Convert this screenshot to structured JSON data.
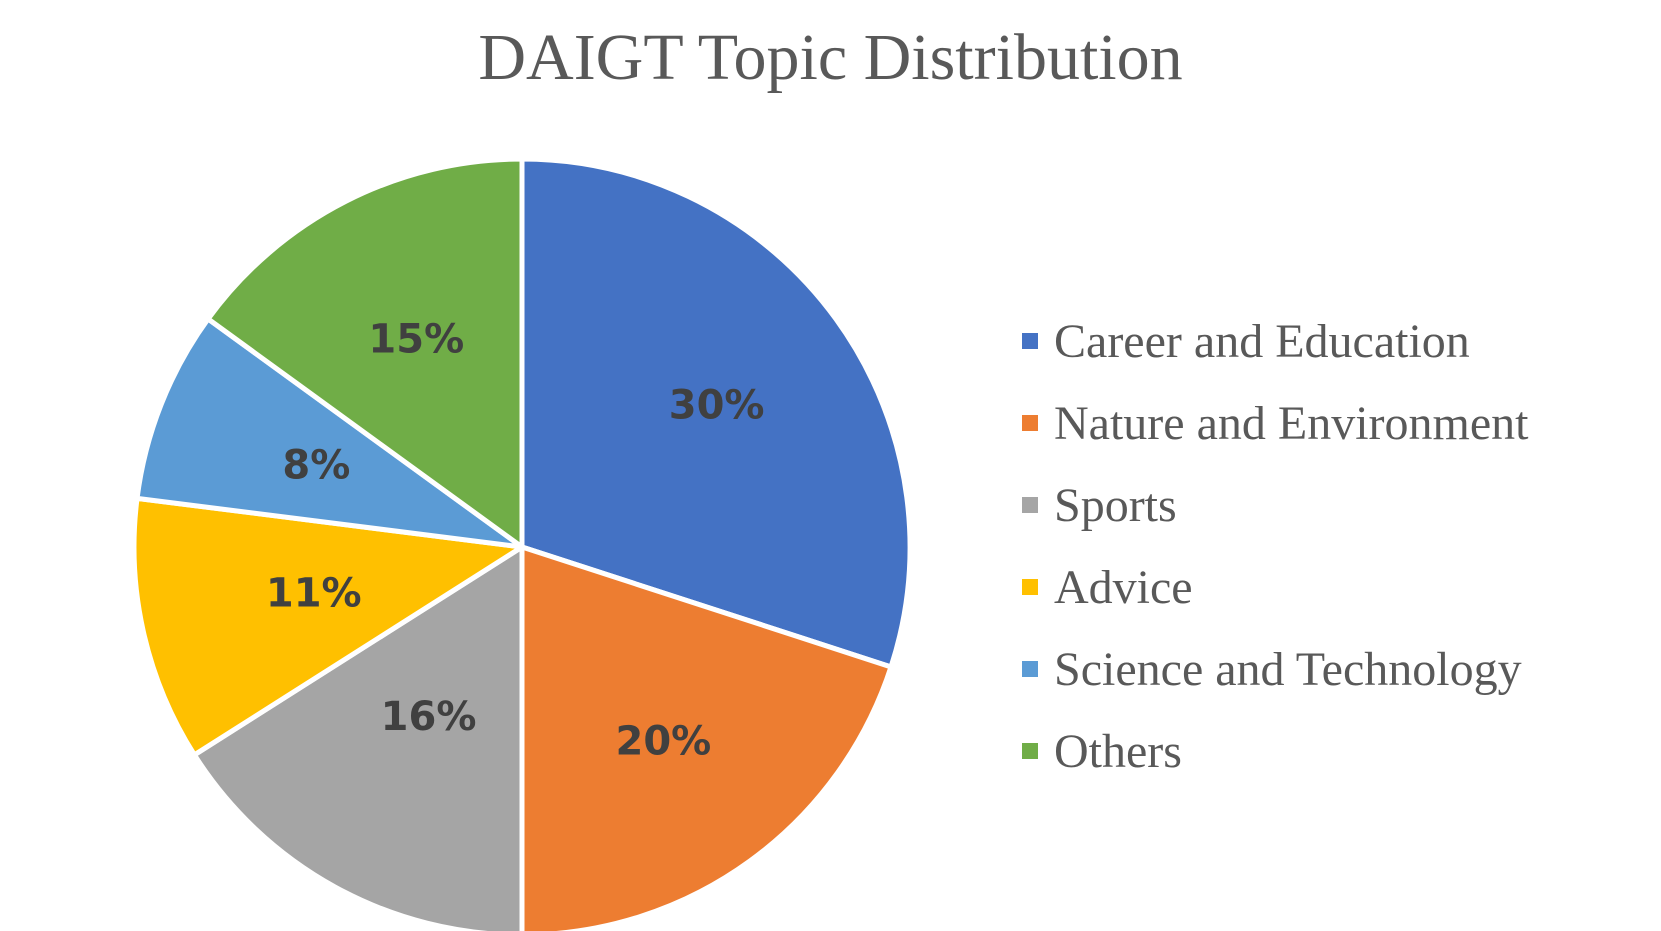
{
  "chart_data": {
    "type": "pie",
    "title": "DAIGT Topic Distribution",
    "categories": [
      "Career and Education",
      "Nature and Environment",
      "Sports",
      "Advice",
      "Science and Technology",
      "Others"
    ],
    "values": [
      30,
      20,
      16,
      11,
      8,
      15
    ],
    "data_labels": [
      "30%",
      "20%",
      "16%",
      "11%",
      "8%",
      "15%"
    ],
    "colors": [
      "#4472C4",
      "#ED7D31",
      "#A5A5A5",
      "#FFC000",
      "#5B9BD5",
      "#70AD47"
    ],
    "legend_position": "right",
    "start_angle": "12 o'clock",
    "direction": "clockwise"
  }
}
